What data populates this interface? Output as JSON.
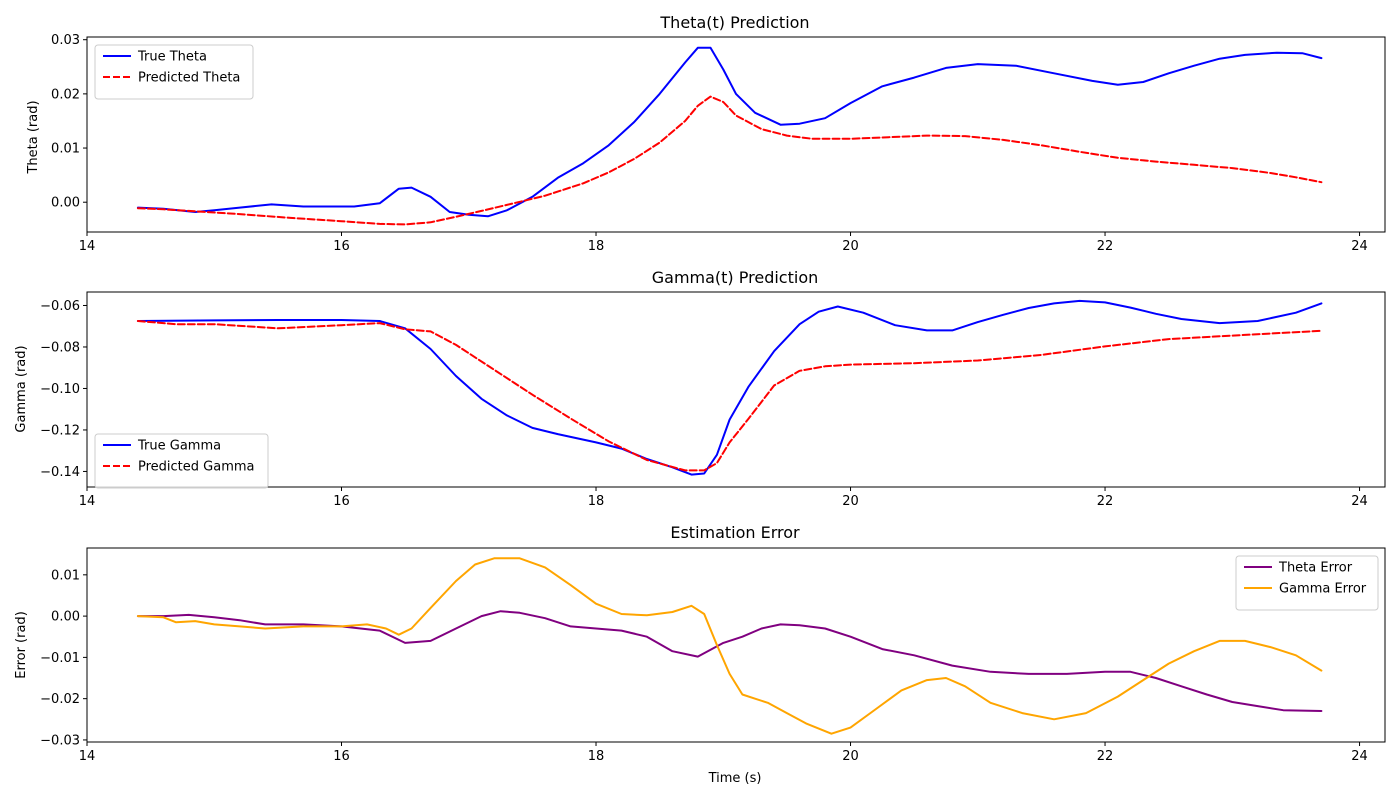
{
  "chart_data": [
    {
      "type": "line",
      "title": "Theta(t) Prediction",
      "xlabel": "",
      "ylabel": "Theta (rad)",
      "xlim": [
        14.0,
        24.2
      ],
      "ylim": [
        -0.0055,
        0.0305
      ],
      "xticks": [
        14,
        16,
        18,
        20,
        22,
        24
      ],
      "xtick_labels": [
        "14",
        "16",
        "18",
        "20",
        "22",
        "24"
      ],
      "yticks": [
        0.0,
        0.01,
        0.02,
        0.03
      ],
      "ytick_labels": [
        "0.00",
        "0.01",
        "0.02",
        "0.03"
      ],
      "legend": {
        "location": "upper left"
      },
      "grid": false,
      "series": [
        {
          "name": "True Theta",
          "color": "#0000ff",
          "style": "solid",
          "x": [
            14.4,
            14.6,
            14.85,
            15.0,
            15.2,
            15.45,
            15.7,
            15.9,
            16.1,
            16.3,
            16.45,
            16.55,
            16.7,
            16.85,
            17.0,
            17.15,
            17.3,
            17.5,
            17.7,
            17.9,
            18.1,
            18.3,
            18.5,
            18.7,
            18.8,
            18.9,
            19.0,
            19.1,
            19.25,
            19.45,
            19.6,
            19.8,
            20.0,
            20.25,
            20.5,
            20.75,
            21.0,
            21.3,
            21.6,
            21.9,
            22.1,
            22.3,
            22.5,
            22.7,
            22.9,
            23.1,
            23.35,
            23.55,
            23.7
          ],
          "y": [
            -0.001,
            -0.0012,
            -0.0018,
            -0.0015,
            -0.001,
            -0.0004,
            -0.0008,
            -0.0008,
            -0.0008,
            -0.0002,
            0.0025,
            0.0027,
            0.001,
            -0.0018,
            -0.0023,
            -0.0026,
            -0.0015,
            0.001,
            0.0045,
            0.0072,
            0.0105,
            0.0148,
            0.02,
            0.0258,
            0.0285,
            0.0285,
            0.0245,
            0.02,
            0.0165,
            0.0143,
            0.0145,
            0.0155,
            0.0183,
            0.0214,
            0.023,
            0.0248,
            0.0255,
            0.0252,
            0.0238,
            0.0224,
            0.0217,
            0.0222,
            0.0238,
            0.0252,
            0.0265,
            0.0272,
            0.0276,
            0.0275,
            0.0266
          ]
        },
        {
          "name": "Predicted Theta",
          "color": "#ff0000",
          "style": "dashed",
          "x": [
            14.4,
            14.6,
            14.8,
            15.2,
            15.6,
            16.0,
            16.3,
            16.5,
            16.7,
            16.9,
            17.1,
            17.3,
            17.6,
            17.9,
            18.1,
            18.3,
            18.5,
            18.7,
            18.8,
            18.9,
            19.0,
            19.1,
            19.3,
            19.5,
            19.7,
            20.0,
            20.3,
            20.6,
            20.9,
            21.2,
            21.5,
            21.8,
            22.1,
            22.4,
            22.7,
            23.0,
            23.3,
            23.5,
            23.7
          ],
          "y": [
            -0.0011,
            -0.0013,
            -0.0016,
            -0.0022,
            -0.0029,
            -0.0035,
            -0.004,
            -0.0041,
            -0.0037,
            -0.0027,
            -0.0016,
            -0.0005,
            0.0012,
            0.0035,
            0.0055,
            0.008,
            0.011,
            0.015,
            0.0178,
            0.0195,
            0.0185,
            0.016,
            0.0135,
            0.0123,
            0.0117,
            0.0117,
            0.012,
            0.0123,
            0.0122,
            0.0115,
            0.0105,
            0.0093,
            0.0082,
            0.0075,
            0.0069,
            0.0063,
            0.0054,
            0.0046,
            0.0037
          ]
        }
      ]
    },
    {
      "type": "line",
      "title": "Gamma(t) Prediction",
      "xlabel": "",
      "ylabel": "Gamma (rad)",
      "xlim": [
        14.0,
        24.2
      ],
      "ylim": [
        -0.1475,
        -0.0535
      ],
      "xticks": [
        14,
        16,
        18,
        20,
        22,
        24
      ],
      "xtick_labels": [
        "14",
        "16",
        "18",
        "20",
        "22",
        "24"
      ],
      "yticks": [
        -0.14,
        -0.12,
        -0.1,
        -0.08,
        -0.06
      ],
      "ytick_labels": [
        "−0.14",
        "−0.12",
        "−0.10",
        "−0.08",
        "−0.06"
      ],
      "legend": {
        "location": "lower left"
      },
      "grid": false,
      "series": [
        {
          "name": "True Gamma",
          "color": "#0000ff",
          "style": "solid",
          "x": [
            14.4,
            15.0,
            15.5,
            16.0,
            16.3,
            16.5,
            16.7,
            16.9,
            17.1,
            17.3,
            17.5,
            17.7,
            18.0,
            18.2,
            18.4,
            18.6,
            18.75,
            18.85,
            18.95,
            19.05,
            19.2,
            19.4,
            19.6,
            19.75,
            19.9,
            20.1,
            20.35,
            20.6,
            20.8,
            21.0,
            21.2,
            21.4,
            21.6,
            21.8,
            22.0,
            22.2,
            22.4,
            22.6,
            22.9,
            23.2,
            23.5,
            23.7
          ],
          "y": [
            -0.0675,
            -0.0672,
            -0.067,
            -0.067,
            -0.0675,
            -0.071,
            -0.081,
            -0.094,
            -0.105,
            -0.113,
            -0.119,
            -0.122,
            -0.126,
            -0.129,
            -0.134,
            -0.138,
            -0.1415,
            -0.141,
            -0.132,
            -0.115,
            -0.099,
            -0.082,
            -0.069,
            -0.063,
            -0.0605,
            -0.0635,
            -0.0695,
            -0.072,
            -0.072,
            -0.068,
            -0.0645,
            -0.0612,
            -0.059,
            -0.0578,
            -0.0585,
            -0.061,
            -0.064,
            -0.0665,
            -0.0685,
            -0.0675,
            -0.0635,
            -0.059
          ]
        },
        {
          "name": "Predicted Gamma",
          "color": "#ff0000",
          "style": "dashed",
          "x": [
            14.4,
            14.7,
            15.0,
            15.5,
            16.0,
            16.3,
            16.5,
            16.7,
            16.9,
            17.2,
            17.5,
            17.8,
            18.1,
            18.4,
            18.7,
            18.85,
            18.95,
            19.05,
            19.2,
            19.4,
            19.6,
            19.8,
            20.0,
            20.5,
            21.0,
            21.5,
            22.0,
            22.5,
            23.0,
            23.7
          ],
          "y": [
            -0.0675,
            -0.069,
            -0.069,
            -0.071,
            -0.0695,
            -0.0685,
            -0.0715,
            -0.0725,
            -0.079,
            -0.091,
            -0.103,
            -0.1145,
            -0.1255,
            -0.1345,
            -0.1395,
            -0.1395,
            -0.136,
            -0.126,
            -0.1145,
            -0.0985,
            -0.0915,
            -0.0893,
            -0.0885,
            -0.0878,
            -0.0865,
            -0.0838,
            -0.0797,
            -0.0762,
            -0.0745,
            -0.0722
          ]
        }
      ]
    },
    {
      "type": "line",
      "title": "Estimation Error",
      "xlabel": "Time (s)",
      "ylabel": "Error (rad)",
      "xlim": [
        14.0,
        24.2
      ],
      "ylim": [
        -0.0305,
        0.0165
      ],
      "xticks": [
        14,
        16,
        18,
        20,
        22,
        24
      ],
      "xtick_labels": [
        "14",
        "16",
        "18",
        "20",
        "22",
        "24"
      ],
      "yticks": [
        -0.03,
        -0.02,
        -0.01,
        0.0,
        0.01
      ],
      "ytick_labels": [
        "−0.03",
        "−0.02",
        "−0.01",
        "0.00",
        "0.01"
      ],
      "legend": {
        "location": "upper right"
      },
      "grid": false,
      "series": [
        {
          "name": "Theta Error",
          "color": "#800080",
          "style": "solid",
          "x": [
            14.4,
            14.6,
            14.8,
            15.0,
            15.2,
            15.4,
            15.7,
            16.0,
            16.3,
            16.5,
            16.7,
            16.9,
            17.1,
            17.25,
            17.4,
            17.6,
            17.8,
            18.0,
            18.2,
            18.4,
            18.6,
            18.8,
            19.0,
            19.15,
            19.3,
            19.45,
            19.6,
            19.8,
            20.0,
            20.25,
            20.5,
            20.8,
            21.1,
            21.4,
            21.7,
            22.0,
            22.2,
            22.4,
            22.6,
            22.8,
            23.0,
            23.2,
            23.4,
            23.7
          ],
          "y": [
            0.0,
            0.0,
            0.0003,
            -0.0003,
            -0.001,
            -0.002,
            -0.002,
            -0.0025,
            -0.0035,
            -0.0065,
            -0.006,
            -0.003,
            0.0,
            0.0012,
            0.0008,
            -0.0005,
            -0.0025,
            -0.003,
            -0.0035,
            -0.005,
            -0.0085,
            -0.0098,
            -0.0065,
            -0.005,
            -0.003,
            -0.002,
            -0.0022,
            -0.003,
            -0.005,
            -0.008,
            -0.0095,
            -0.012,
            -0.0135,
            -0.014,
            -0.014,
            -0.0135,
            -0.0135,
            -0.015,
            -0.017,
            -0.019,
            -0.0208,
            -0.0218,
            -0.0228,
            -0.023
          ]
        },
        {
          "name": "Gamma Error",
          "color": "#ffa500",
          "style": "solid",
          "x": [
            14.4,
            14.6,
            14.7,
            14.85,
            15.0,
            15.2,
            15.4,
            15.7,
            16.0,
            16.2,
            16.35,
            16.45,
            16.55,
            16.7,
            16.9,
            17.05,
            17.2,
            17.4,
            17.6,
            17.8,
            18.0,
            18.2,
            18.4,
            18.6,
            18.75,
            18.85,
            18.95,
            19.05,
            19.15,
            19.25,
            19.35,
            19.5,
            19.65,
            19.85,
            20.0,
            20.2,
            20.4,
            20.6,
            20.75,
            20.9,
            21.1,
            21.35,
            21.6,
            21.85,
            22.1,
            22.3,
            22.5,
            22.7,
            22.9,
            23.1,
            23.3,
            23.5,
            23.7
          ],
          "y": [
            0.0,
            -0.0003,
            -0.0015,
            -0.0012,
            -0.002,
            -0.0025,
            -0.003,
            -0.0025,
            -0.0025,
            -0.002,
            -0.003,
            -0.0045,
            -0.003,
            0.002,
            0.0085,
            0.0125,
            0.014,
            0.014,
            0.0118,
            0.0075,
            0.003,
            0.0005,
            0.0002,
            0.001,
            0.0025,
            0.0005,
            -0.007,
            -0.014,
            -0.019,
            -0.02,
            -0.021,
            -0.0235,
            -0.026,
            -0.0285,
            -0.027,
            -0.0225,
            -0.018,
            -0.0155,
            -0.015,
            -0.017,
            -0.021,
            -0.0235,
            -0.025,
            -0.0235,
            -0.0195,
            -0.0155,
            -0.0115,
            -0.0085,
            -0.006,
            -0.006,
            -0.0075,
            -0.0095,
            -0.0132
          ]
        }
      ]
    }
  ]
}
